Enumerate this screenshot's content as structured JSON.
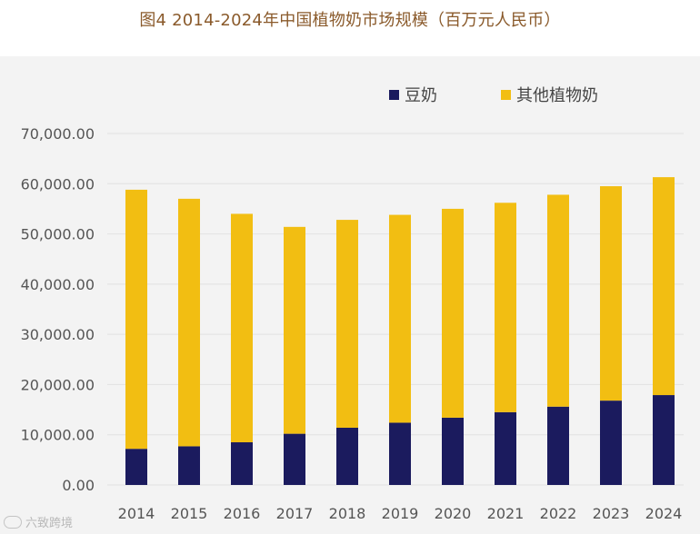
{
  "chart_data": {
    "type": "bar",
    "stacked": true,
    "title": "图4 2014-2024年中国植物奶市场规模（百万元人民币）",
    "categories": [
      "2014",
      "2015",
      "2016",
      "2017",
      "2018",
      "2019",
      "2020",
      "2021",
      "2022",
      "2023",
      "2024"
    ],
    "series": [
      {
        "name": "豆奶",
        "color": "#1b1b5e",
        "values": [
          7200,
          7700,
          8500,
          10200,
          11400,
          12400,
          13400,
          14500,
          15600,
          16800,
          17900
        ]
      },
      {
        "name": "其他植物奶",
        "color": "#f2be12",
        "values": [
          51600,
          49300,
          45500,
          41200,
          41400,
          41400,
          41600,
          41700,
          42200,
          42700,
          43400
        ]
      }
    ],
    "ylim": [
      0,
      70000
    ],
    "yticks": [
      0,
      10000,
      20000,
      30000,
      40000,
      50000,
      60000,
      70000
    ],
    "ytick_labels": [
      "0.00",
      "10,000.00",
      "20,000.00",
      "30,000.00",
      "40,000.00",
      "50,000.00",
      "60,000.00",
      "70,000.00"
    ],
    "xlabel": "",
    "ylabel": "",
    "legend_position": "top-right",
    "grid": true
  },
  "watermark": {
    "text": "六致跨境",
    "icon": "brand-logo-icon"
  }
}
